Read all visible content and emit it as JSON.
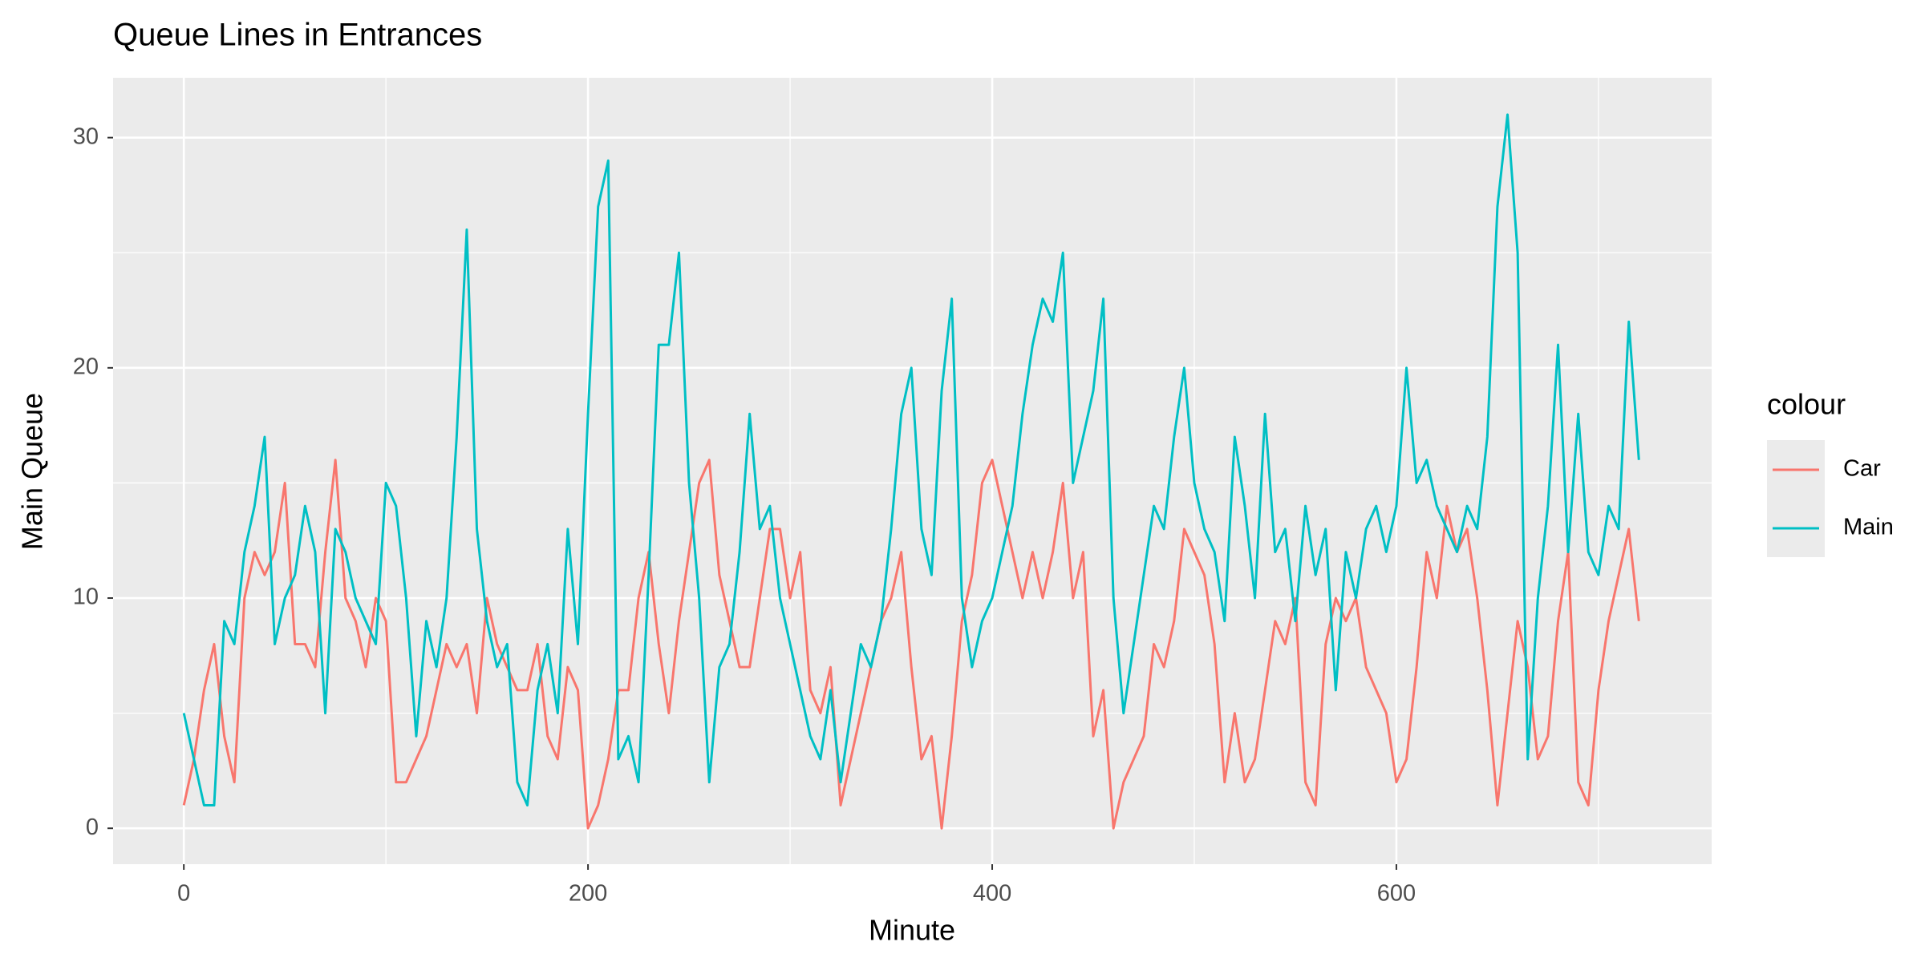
{
  "chart_data": {
    "type": "line",
    "title": "Queue Lines in Entrances",
    "x_label": "Minute",
    "y_label": "Main Queue",
    "legend_title": "colour",
    "legend_position": "right",
    "grid": true,
    "x": [
      0,
      5,
      10,
      15,
      20,
      25,
      30,
      35,
      40,
      45,
      50,
      55,
      60,
      65,
      70,
      75,
      80,
      85,
      90,
      95,
      100,
      105,
      110,
      115,
      120,
      125,
      130,
      135,
      140,
      145,
      150,
      155,
      160,
      165,
      170,
      175,
      180,
      185,
      190,
      195,
      200,
      205,
      210,
      215,
      220,
      225,
      230,
      235,
      240,
      245,
      250,
      255,
      260,
      265,
      270,
      275,
      280,
      285,
      290,
      295,
      300,
      305,
      310,
      315,
      320,
      325,
      330,
      335,
      340,
      345,
      350,
      355,
      360,
      365,
      370,
      375,
      380,
      385,
      390,
      395,
      400,
      405,
      410,
      415,
      420,
      425,
      430,
      435,
      440,
      445,
      450,
      455,
      460,
      465,
      470,
      475,
      480,
      485,
      490,
      495,
      500,
      505,
      510,
      515,
      520,
      525,
      530,
      535,
      540,
      545,
      550,
      555,
      560,
      565,
      570,
      575,
      580,
      585,
      590,
      595,
      600,
      605,
      610,
      615,
      620,
      625,
      630,
      635,
      640,
      645,
      650,
      655,
      660,
      665,
      670,
      675,
      680,
      685,
      690,
      695,
      700,
      705,
      710,
      715,
      720
    ],
    "series": [
      {
        "name": "Car",
        "color": "#F8766D",
        "values": [
          1,
          3,
          6,
          8,
          4,
          2,
          10,
          12,
          11,
          12,
          15,
          8,
          8,
          7,
          12,
          16,
          10,
          9,
          7,
          10,
          9,
          2,
          2,
          3,
          4,
          6,
          8,
          7,
          8,
          5,
          10,
          8,
          7,
          6,
          6,
          8,
          4,
          3,
          7,
          6,
          0,
          1,
          3,
          6,
          6,
          10,
          12,
          8,
          5,
          9,
          12,
          15,
          16,
          11,
          9,
          7,
          7,
          10,
          13,
          13,
          10,
          12,
          6,
          5,
          7,
          1,
          3,
          5,
          7,
          9,
          10,
          12,
          7,
          3,
          4,
          0,
          4,
          9,
          11,
          15,
          16,
          14,
          12,
          10,
          12,
          10,
          12,
          15,
          10,
          12,
          4,
          6,
          0,
          2,
          3,
          4,
          8,
          7,
          9,
          13,
          12,
          11,
          8,
          2,
          5,
          2,
          3,
          6,
          9,
          8,
          10,
          2,
          1,
          8,
          10,
          9,
          10,
          7,
          6,
          5,
          2,
          3,
          7,
          12,
          10,
          14,
          12,
          13,
          10,
          6,
          1,
          5,
          9,
          7,
          3,
          4,
          9,
          12,
          2,
          1,
          6,
          9,
          11,
          13,
          9
        ]
      },
      {
        "name": "Main",
        "color": "#00BFC4",
        "values": [
          5,
          3,
          1,
          1,
          9,
          8,
          12,
          14,
          17,
          8,
          10,
          11,
          14,
          12,
          5,
          13,
          12,
          10,
          9,
          8,
          15,
          14,
          10,
          4,
          9,
          7,
          10,
          17,
          26,
          13,
          9,
          7,
          8,
          2,
          1,
          6,
          8,
          5,
          13,
          8,
          18,
          27,
          29,
          3,
          4,
          2,
          11,
          21,
          21,
          25,
          15,
          10,
          2,
          7,
          8,
          12,
          18,
          13,
          14,
          10,
          8,
          6,
          4,
          3,
          6,
          2,
          5,
          8,
          7,
          9,
          13,
          18,
          20,
          13,
          11,
          19,
          23,
          10,
          7,
          9,
          10,
          12,
          14,
          18,
          21,
          23,
          22,
          25,
          15,
          17,
          19,
          23,
          10,
          5,
          8,
          11,
          14,
          13,
          17,
          20,
          15,
          13,
          12,
          9,
          17,
          14,
          10,
          18,
          12,
          13,
          9,
          14,
          11,
          13,
          6,
          12,
          10,
          13,
          14,
          12,
          14,
          20,
          15,
          16,
          14,
          13,
          12,
          14,
          13,
          17,
          27,
          31,
          25,
          3,
          10,
          14,
          21,
          12,
          18,
          12,
          11,
          14,
          13,
          22,
          16
        ]
      }
    ],
    "xlim": [
      -35,
      756
    ],
    "xticks": [
      0,
      200,
      400,
      600
    ],
    "xminorticks": [
      100,
      300,
      500,
      700
    ],
    "ylim": [
      -1.56,
      32.6
    ],
    "yticks": [
      0,
      10,
      20,
      30
    ],
    "yminorticks": [
      5,
      15,
      25
    ]
  }
}
